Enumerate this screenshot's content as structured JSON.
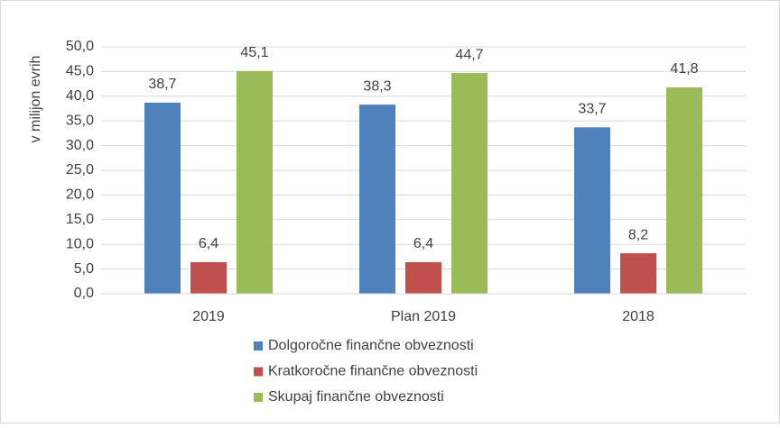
{
  "chart_data": {
    "type": "bar",
    "y_label": "v milijon evrih",
    "categories": [
      "2019",
      "Plan 2019",
      "2018"
    ],
    "series": [
      {
        "name": "Dolgoročne finančne obveznosti",
        "color": "#4f81bd",
        "values": [
          38.7,
          38.3,
          33.7
        ],
        "value_labels": [
          "38,7",
          "38,3",
          "33,7"
        ]
      },
      {
        "name": "Kratkoročne finančne obveznosti",
        "color": "#c0504d",
        "values": [
          6.4,
          6.4,
          8.2
        ],
        "value_labels": [
          "6,4",
          "6,4",
          "8,2"
        ]
      },
      {
        "name": "Skupaj finančne obveznosti",
        "color": "#9bbb59",
        "values": [
          45.1,
          44.7,
          41.8
        ],
        "value_labels": [
          "45,1",
          "44,7",
          "41,8"
        ]
      }
    ],
    "ylim": [
      0,
      50
    ],
    "yticks": [
      {
        "value": 0,
        "label": "0,0"
      },
      {
        "value": 5,
        "label": "5,0"
      },
      {
        "value": 10,
        "label": "10,0"
      },
      {
        "value": 15,
        "label": "15,0"
      },
      {
        "value": 20,
        "label": "20,0"
      },
      {
        "value": 25,
        "label": "25,0"
      },
      {
        "value": 30,
        "label": "30,0"
      },
      {
        "value": 35,
        "label": "35,0"
      },
      {
        "value": 40,
        "label": "40,0"
      },
      {
        "value": 45,
        "label": "45,0"
      },
      {
        "value": 50,
        "label": "50,0"
      }
    ],
    "grid": true,
    "legend": "bottom"
  }
}
